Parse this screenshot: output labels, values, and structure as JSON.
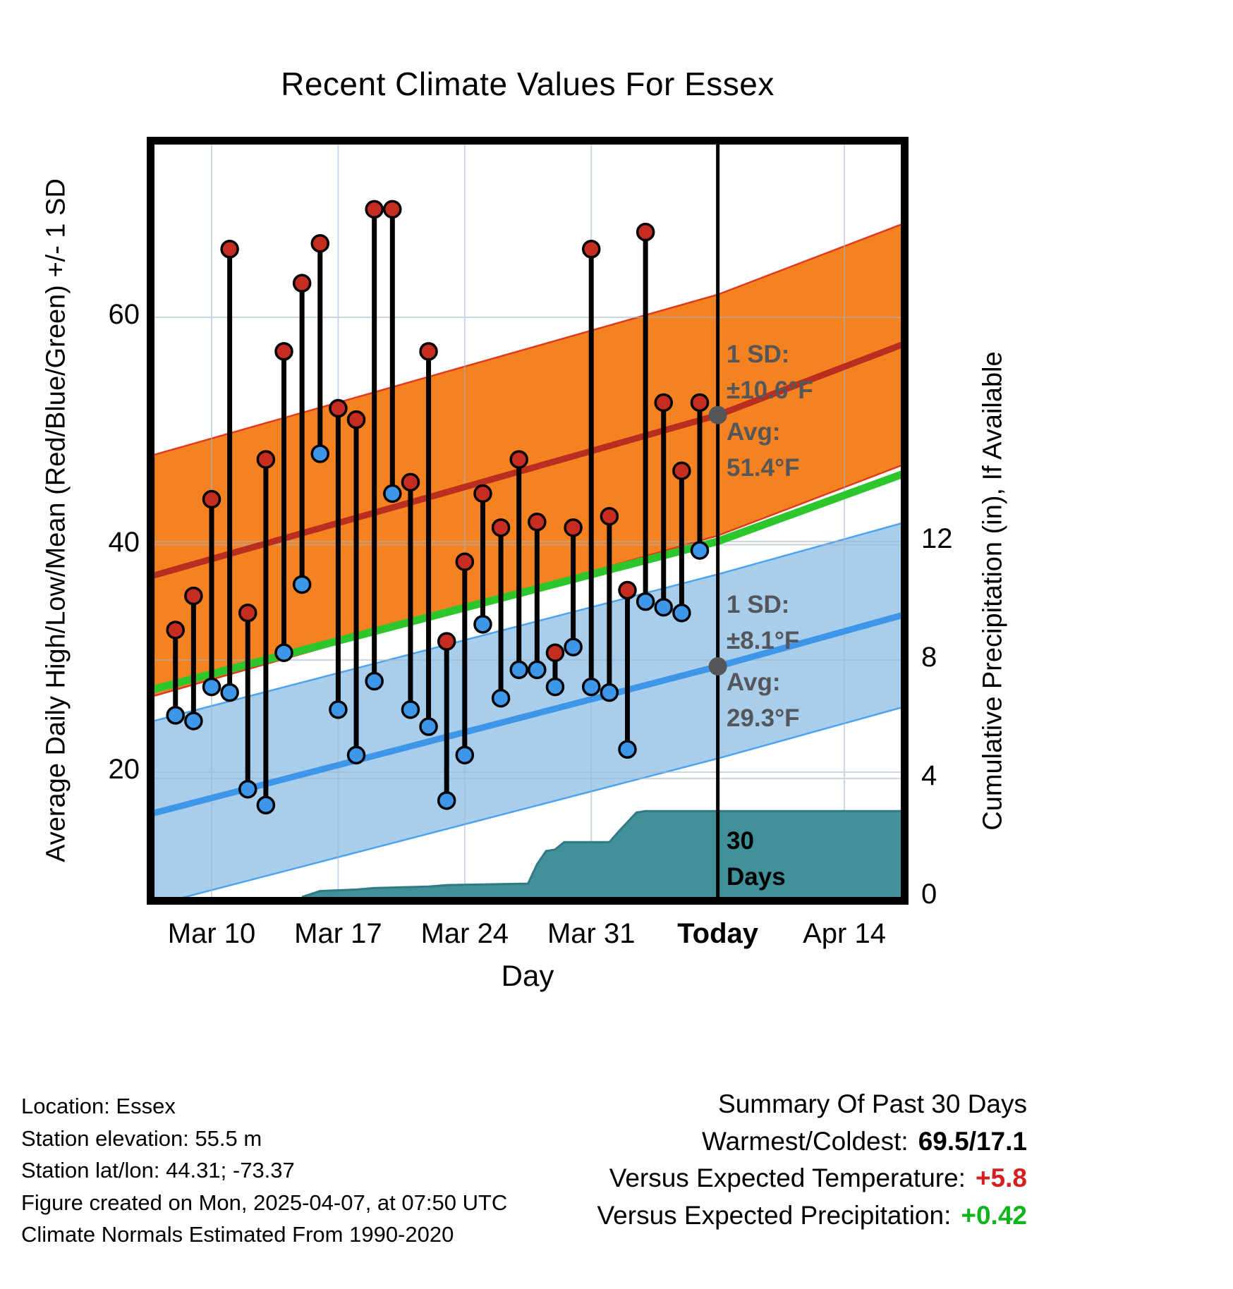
{
  "title": "Recent Climate Values For Essex",
  "chart_data": {
    "type": "composite",
    "subtypes": [
      "band",
      "line",
      "stem-scatter",
      "area"
    ],
    "title": "Recent Climate Values For Essex",
    "xlabel": "Day",
    "ylabel_left": "Average Daily High/Low/Mean (Red/Blue/Green) +/- 1 SD",
    "ylabel_right": "Cumulative Precipitation (in), If Available",
    "x_ticks": [
      "Mar 10",
      "Mar 17",
      "Mar 24",
      "Mar 31",
      "Today",
      "Apr 14"
    ],
    "y_ticks_left": [
      "60",
      "40",
      "20"
    ],
    "y_ticks_right": [
      "12",
      "8",
      "4",
      "0"
    ],
    "ylim_left": [
      9,
      75
    ],
    "ylim_right": [
      0,
      25.4
    ],
    "grid": true,
    "legend_position": "none",
    "days": [
      {
        "date": "Mar 8",
        "high": 32.5,
        "low": 25.0
      },
      {
        "date": "Mar 9",
        "high": 35.5,
        "low": 24.5
      },
      {
        "date": "Mar 10",
        "high": 44.0,
        "low": 27.5
      },
      {
        "date": "Mar 11",
        "high": 66.0,
        "low": 27.0
      },
      {
        "date": "Mar 12",
        "high": 34.0,
        "low": 18.5
      },
      {
        "date": "Mar 13",
        "high": 47.5,
        "low": 17.1
      },
      {
        "date": "Mar 14",
        "high": 57.0,
        "low": 30.5
      },
      {
        "date": "Mar 15",
        "high": 63.0,
        "low": 36.5
      },
      {
        "date": "Mar 16",
        "high": 66.5,
        "low": 48.0
      },
      {
        "date": "Mar 17",
        "high": 52.0,
        "low": 25.5
      },
      {
        "date": "Mar 18",
        "high": 51.0,
        "low": 21.5
      },
      {
        "date": "Mar 19",
        "high": 69.5,
        "low": 28.0
      },
      {
        "date": "Mar 20",
        "high": 69.5,
        "low": 44.5
      },
      {
        "date": "Mar 21",
        "high": 45.5,
        "low": 25.5
      },
      {
        "date": "Mar 22",
        "high": 57.0,
        "low": 24.0
      },
      {
        "date": "Mar 23",
        "high": 31.5,
        "low": 17.5
      },
      {
        "date": "Mar 24",
        "high": 38.5,
        "low": 21.5
      },
      {
        "date": "Mar 25",
        "high": 44.5,
        "low": 33.0
      },
      {
        "date": "Mar 26",
        "high": 41.5,
        "low": 26.5
      },
      {
        "date": "Mar 27",
        "high": 47.5,
        "low": 29.0
      },
      {
        "date": "Mar 28",
        "high": 42.0,
        "low": 29.0
      },
      {
        "date": "Mar 29",
        "high": 30.5,
        "low": 27.5
      },
      {
        "date": "Mar 30",
        "high": 41.5,
        "low": 31.0
      },
      {
        "date": "Mar 31",
        "high": 66.0,
        "low": 27.5
      },
      {
        "date": "Apr 1",
        "high": 42.5,
        "low": 27.0
      },
      {
        "date": "Apr 2",
        "high": 36.0,
        "low": 22.0
      },
      {
        "date": "Apr 3",
        "high": 67.5,
        "low": 35.0
      },
      {
        "date": "Apr 4",
        "high": 52.5,
        "low": 34.5
      },
      {
        "date": "Apr 5",
        "high": 46.5,
        "low": 34.0
      },
      {
        "date": "Apr 6",
        "high": 52.5,
        "low": 39.5
      }
    ],
    "normals": {
      "high": {
        "sd": 10.6,
        "avg_at_today": 51.4,
        "curve": [
          {
            "t": -1.2,
            "v": 37.3
          },
          {
            "t": 30,
            "v": 51.4
          },
          {
            "t": 40.2,
            "v": 57.6
          }
        ]
      },
      "mean": {
        "curve": [
          {
            "t": -1.2,
            "v": 27.3
          },
          {
            "t": 30,
            "v": 40.3
          },
          {
            "t": 40.2,
            "v": 46.2
          }
        ]
      },
      "low": {
        "sd": 8.1,
        "avg_at_today": 29.3,
        "curve": [
          {
            "t": -1.2,
            "v": 16.4
          },
          {
            "t": 30,
            "v": 29.3
          },
          {
            "t": 40.2,
            "v": 33.8
          }
        ]
      }
    },
    "precip_cumulative": [
      {
        "t": 7,
        "in": 0.0
      },
      {
        "t": 8,
        "in": 0.2
      },
      {
        "t": 10,
        "in": 0.25
      },
      {
        "t": 11,
        "in": 0.3
      },
      {
        "t": 14,
        "in": 0.35
      },
      {
        "t": 15,
        "in": 0.4
      },
      {
        "t": 19.5,
        "in": 0.45
      },
      {
        "t": 20,
        "in": 1.1
      },
      {
        "t": 20.5,
        "in": 1.55
      },
      {
        "t": 21,
        "in": 1.6
      },
      {
        "t": 21.5,
        "in": 1.85
      },
      {
        "t": 24,
        "in": 1.85
      },
      {
        "t": 24.5,
        "in": 2.2
      },
      {
        "t": 25.5,
        "in": 2.85
      },
      {
        "t": 26,
        "in": 2.9
      },
      {
        "t": 40.2,
        "in": 2.9
      }
    ],
    "annotations": {
      "high_sd": {
        "line1": "1 SD:",
        "line2": "±10.6°F"
      },
      "high_avg": {
        "line1": "Avg:",
        "line2": "51.4°F"
      },
      "low_sd": {
        "line1": "1 SD:",
        "line2": "±8.1°F"
      },
      "low_avg": {
        "line1": "Avg:",
        "line2": "29.3°F"
      },
      "period": {
        "line1": "30",
        "line2": "Days"
      }
    },
    "colors": {
      "high_band": "#F58220",
      "high_band_edge": "#E03A1E",
      "high_line": "#B92E21",
      "low_band": "#A8CEEB",
      "low_band_edge": "#4DA3EE",
      "low_line": "#3E96E8",
      "mean_line": "#2DC62D",
      "high_dot": "#C42D20",
      "low_dot": "#3E96E8",
      "precip_fill": "#41909A",
      "precip_edge": "#2E7A85",
      "today_line": "#000000",
      "grid": "#9FB6CC",
      "annotation_gray": "#55565A"
    }
  },
  "footer_left": {
    "lines": [
      "Location: Essex",
      "Station elevation: 55.5 m",
      "Station lat/lon: 44.31; -73.37",
      "Figure created on Mon, 2025-04-07, at 07:50 UTC",
      "Climate Normals Estimated From 1990-2020"
    ]
  },
  "summary": {
    "title": "Summary Of Past 30 Days",
    "warmest_label": "Warmest/Coldest:",
    "warmest_value": "69.5/17.1",
    "vs_temp_label": "Versus Expected Temperature:",
    "vs_temp_value": "+5.8",
    "vs_precip_label": "Versus Expected Precipitation:",
    "vs_precip_value": "+0.42"
  }
}
